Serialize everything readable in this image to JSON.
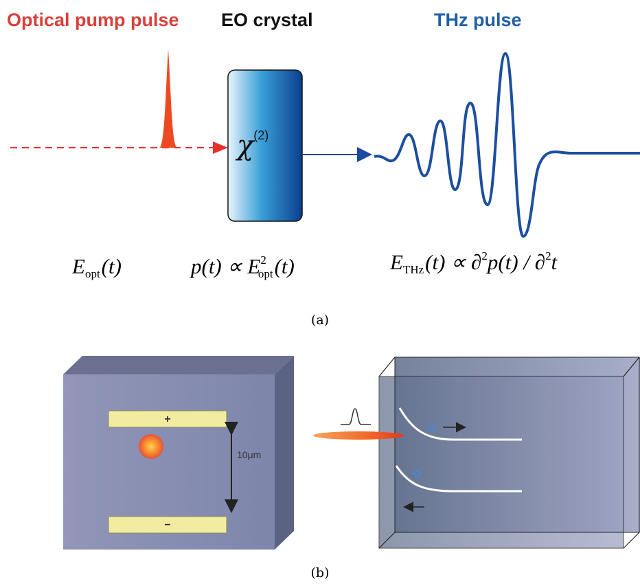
{
  "panel_a": {
    "labels": {
      "pump": "Optical pump pulse",
      "crystal": "EO crystal",
      "thz": "THz pulse"
    },
    "crystal_symbol": {
      "base": "χ",
      "order": "(2)"
    },
    "equations": [
      [
        "E",
        "opt",
        "(t)"
      ],
      [
        "p(t) ∝ E",
        "2",
        "opt",
        "(t)"
      ],
      [
        "E",
        "THz",
        "(t) ∝ ∂",
        "2",
        "p(t) / ∂",
        "2",
        "t"
      ]
    ],
    "caption": "(a)"
  },
  "panel_b": {
    "plus": "+",
    "minus": "−",
    "gap": "10μm",
    "caption": "(b)"
  }
}
